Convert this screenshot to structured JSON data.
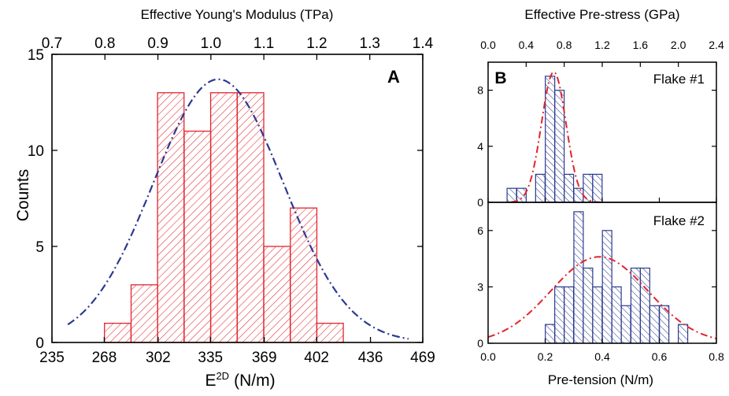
{
  "colors": {
    "panel_a_bars": "#e3242b",
    "panel_b_bars": "#2b3a8f",
    "panel_a_fit": "#2b3a8f",
    "panel_b_fit": "#e3242b",
    "axis": "#000000"
  },
  "chart_data": [
    {
      "panel": "A",
      "type": "bar",
      "hatch": "diagonal-right",
      "xlabel_main": "E",
      "xlabel_sup": "2D",
      "xlabel_unit": "(N/m)",
      "ylabel": "Counts",
      "top_label": "Effective Young's Modulus (TPa)",
      "xlim": [
        235,
        469
      ],
      "ylim": [
        0,
        15
      ],
      "top_lim": [
        0.7,
        1.4
      ],
      "x_ticks": [
        "235",
        "268",
        "302",
        "335",
        "369",
        "402",
        "436",
        "469"
      ],
      "y_ticks": [
        "0",
        "5",
        "10",
        "15"
      ],
      "top_ticks": [
        "0.7",
        "0.8",
        "0.9",
        "1.0",
        "1.1",
        "1.2",
        "1.3",
        "1.4"
      ],
      "bin_width": 16.7,
      "bins": [
        {
          "x": 276.5,
          "count": 1
        },
        {
          "x": 293.3,
          "count": 3
        },
        {
          "x": 310.0,
          "count": 13
        },
        {
          "x": 326.8,
          "count": 11
        },
        {
          "x": 343.5,
          "count": 13
        },
        {
          "x": 360.3,
          "count": 13
        },
        {
          "x": 377.0,
          "count": 5
        },
        {
          "x": 393.8,
          "count": 7
        },
        {
          "x": 410.5,
          "count": 1
        }
      ],
      "fit": {
        "type": "gaussian",
        "mean": 340,
        "sd": 41,
        "peak": 13.7,
        "style": "dash-dot"
      }
    },
    {
      "panel": "B",
      "type": "bar",
      "hatch": "diagonal-left",
      "xlabel": "Pre-tension (N/m)",
      "top_label": "Effective Pre-stress (GPa)",
      "xlim": [
        0.0,
        0.8
      ],
      "top_lim": [
        0.0,
        2.4
      ],
      "x_ticks": [
        "0.0",
        "0.2",
        "0.4",
        "0.6",
        "0.8"
      ],
      "top_ticks": [
        "0.0",
        "0.4",
        "0.8",
        "1.2",
        "1.6",
        "2.0",
        "2.4"
      ],
      "bin_width": 0.033,
      "subplots": [
        {
          "label": "Flake #1",
          "ylim": [
            0,
            10
          ],
          "y_ticks": [
            "0",
            "4",
            "8"
          ],
          "bins": [
            {
              "x": 0.083,
              "count": 1
            },
            {
              "x": 0.117,
              "count": 1
            },
            {
              "x": 0.183,
              "count": 2
            },
            {
              "x": 0.217,
              "count": 9
            },
            {
              "x": 0.25,
              "count": 8
            },
            {
              "x": 0.283,
              "count": 2
            },
            {
              "x": 0.317,
              "count": 1
            },
            {
              "x": 0.35,
              "count": 2
            },
            {
              "x": 0.383,
              "count": 2
            }
          ],
          "fit": {
            "type": "gaussian",
            "mean": 0.23,
            "sd": 0.043,
            "peak": 9.3,
            "style": "dash-dot"
          }
        },
        {
          "label": "Flake #2",
          "ylim": [
            0,
            7.5
          ],
          "y_ticks": [
            "0",
            "3",
            "6"
          ],
          "bins": [
            {
              "x": 0.217,
              "count": 1
            },
            {
              "x": 0.25,
              "count": 3
            },
            {
              "x": 0.283,
              "count": 3
            },
            {
              "x": 0.317,
              "count": 7
            },
            {
              "x": 0.35,
              "count": 4
            },
            {
              "x": 0.383,
              "count": 3
            },
            {
              "x": 0.417,
              "count": 6
            },
            {
              "x": 0.45,
              "count": 3
            },
            {
              "x": 0.483,
              "count": 2
            },
            {
              "x": 0.517,
              "count": 4
            },
            {
              "x": 0.55,
              "count": 4
            },
            {
              "x": 0.583,
              "count": 2
            },
            {
              "x": 0.617,
              "count": 2
            },
            {
              "x": 0.683,
              "count": 1
            }
          ],
          "fit": {
            "type": "gaussian",
            "mean": 0.39,
            "sd": 0.17,
            "peak": 4.6,
            "style": "dash-dot"
          }
        }
      ]
    }
  ]
}
